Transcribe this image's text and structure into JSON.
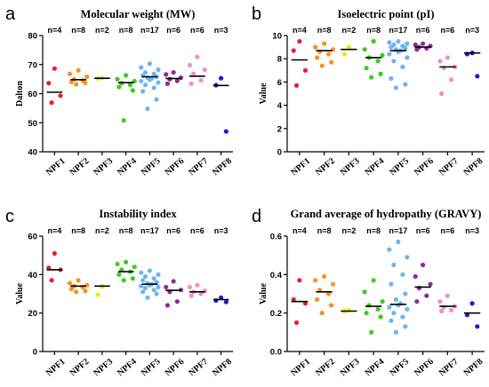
{
  "chart_data": [
    {
      "panel": "a",
      "type": "scatter",
      "title": "Molecular weight (MW)",
      "ylabel": "Dalton",
      "ylim": [
        40,
        80
      ],
      "yticks": [
        40,
        50,
        60,
        70,
        80
      ],
      "categories": [
        "NPF1",
        "NPF2",
        "NPF3",
        "NPF4",
        "NPF5",
        "NPF6",
        "NPF7",
        "NPF8"
      ],
      "n_labels": [
        "n=4",
        "n=8",
        "n=2",
        "n=8",
        "n=17",
        "n=6",
        "n=6",
        "n=3"
      ],
      "colors": [
        "#e8202a",
        "#f7931e",
        "#f2e600",
        "#3fca1f",
        "#6fb4f0",
        "#8e2a9c",
        "#f090c0",
        "#1c1ccf"
      ],
      "medians": [
        60.5,
        64.8,
        65.3,
        63.8,
        65.8,
        65.2,
        66,
        62.8
      ],
      "points": [
        [
          68.6,
          63.6,
          59.3,
          56.9
        ],
        [
          68.0,
          66.8,
          65.8,
          64.9,
          64.5,
          64.0,
          63.7,
          63.2
        ],
        [
          65.4,
          65.2
        ],
        [
          66.3,
          65.0,
          64.3,
          63.6,
          63.0,
          62.3,
          61.1,
          50.8
        ],
        [
          70.3,
          69.0,
          68.2,
          67.3,
          66.8,
          66.2,
          65.8,
          65.5,
          65.2,
          64.8,
          64.3,
          63.8,
          63.0,
          62.0,
          60.8,
          58.0,
          54.8
        ],
        [
          67.3,
          66.6,
          65.5,
          65.0,
          64.4,
          63.4
        ],
        [
          72.6,
          69.8,
          68.2,
          66.8,
          64.6,
          63.4
        ],
        [
          65.3,
          62.9,
          47.0
        ]
      ]
    },
    {
      "panel": "b",
      "type": "scatter",
      "title": "Isoelectric point (pI)",
      "ylabel": "Value",
      "ylim": [
        0,
        10
      ],
      "yticks": [
        0,
        2,
        4,
        6,
        8,
        10
      ],
      "categories": [
        "NPF1",
        "NPF2",
        "NPF3",
        "NPF4",
        "NPF5",
        "NPF6",
        "NPF7",
        "NPF8"
      ],
      "n_labels": [
        "n=4",
        "n=8",
        "n=2",
        "n=8",
        "n=17",
        "n=6",
        "n=6",
        "n=3"
      ],
      "colors": [
        "#e8202a",
        "#f7931e",
        "#f2e600",
        "#3fca1f",
        "#6fb4f0",
        "#8e2a9c",
        "#f090c0",
        "#1c1ccf"
      ],
      "medians": [
        7.9,
        8.7,
        8.8,
        8.1,
        8.7,
        9.0,
        7.3,
        8.5
      ],
      "points": [
        [
          9.5,
          8.7,
          7.0,
          5.7
        ],
        [
          9.3,
          9.0,
          8.8,
          8.6,
          8.4,
          8.1,
          7.7,
          7.4
        ],
        [
          9.0,
          8.4
        ],
        [
          9.5,
          8.8,
          8.3,
          8.1,
          7.8,
          7.2,
          6.7,
          6.4
        ],
        [
          9.5,
          9.4,
          9.3,
          9.2,
          9.1,
          9.0,
          8.9,
          8.8,
          8.7,
          8.6,
          8.4,
          8.1,
          7.8,
          7.3,
          6.3,
          5.8,
          5.5
        ],
        [
          9.3,
          9.2,
          9.1,
          9.0,
          8.9,
          8.8
        ],
        [
          8.1,
          7.8,
          7.3,
          7.2,
          6.2,
          5.0
        ],
        [
          8.5,
          8.4,
          6.5
        ]
      ]
    },
    {
      "panel": "c",
      "type": "scatter",
      "title": "Instability index",
      "ylabel": "Value",
      "ylim": [
        0,
        60
      ],
      "yticks": [
        0,
        20,
        40,
        60
      ],
      "categories": [
        "NPF1",
        "NPF2",
        "NPF3",
        "NPF4",
        "NPF5",
        "NPF6",
        "NPF7",
        "NPF8"
      ],
      "n_labels": [
        "n=4",
        "n=8",
        "n=2",
        "n=8",
        "n=17",
        "n=6",
        "n=6",
        "n=3"
      ],
      "colors": [
        "#e8202a",
        "#f7931e",
        "#f2e600",
        "#3fca1f",
        "#6fb4f0",
        "#8e2a9c",
        "#f090c0",
        "#1c1ccf"
      ],
      "medians": [
        42.5,
        34,
        34,
        41.5,
        35,
        31.8,
        31,
        27
      ],
      "points": [
        [
          51.0,
          43.5,
          42.5,
          37.0
        ],
        [
          37.0,
          35.5,
          34.5,
          34.0,
          33.5,
          32.5,
          31.5,
          31.0
        ],
        [
          33.8,
          29.5
        ],
        [
          46.5,
          45.5,
          44.0,
          42.5,
          41.5,
          40.0,
          38.0,
          37.0
        ],
        [
          42.0,
          41.0,
          40.0,
          39.0,
          38.0,
          37.0,
          36.0,
          35.5,
          35.0,
          34.5,
          34.0,
          33.5,
          33.0,
          32.0,
          31.0,
          30.0,
          28.0
        ],
        [
          36.5,
          33.5,
          32.0,
          31.0,
          26.0,
          24.0
        ],
        [
          34.5,
          33.5,
          31.5,
          31.0,
          30.0,
          29.0
        ],
        [
          28.0,
          26.5,
          25.8
        ]
      ]
    },
    {
      "panel": "d",
      "type": "scatter",
      "title": "Grand average of hydropathy (GRAVY)",
      "ylabel": "Value",
      "ylim": [
        0,
        0.6
      ],
      "yticks": [
        0.0,
        0.2,
        0.4,
        0.6
      ],
      "categories": [
        "NPF1",
        "NPF2",
        "NPF3",
        "NPF4",
        "NPF5",
        "NPF6",
        "NPF7",
        "NPF8"
      ],
      "n_labels": [
        "n=4",
        "n=8",
        "n=2",
        "n=8",
        "n=17",
        "n=6",
        "n=6",
        "n=3"
      ],
      "colors": [
        "#e8202a",
        "#f7931e",
        "#f2e600",
        "#3fca1f",
        "#6fb4f0",
        "#8e2a9c",
        "#f090c0",
        "#1c1ccf"
      ],
      "medians": [
        0.26,
        0.31,
        0.21,
        0.235,
        0.245,
        0.335,
        0.235,
        0.2
      ],
      "points": [
        [
          0.37,
          0.27,
          0.25,
          0.15
        ],
        [
          0.39,
          0.37,
          0.35,
          0.32,
          0.3,
          0.27,
          0.24,
          0.2
        ],
        [
          0.215,
          0.21
        ],
        [
          0.37,
          0.31,
          0.26,
          0.24,
          0.22,
          0.2,
          0.18,
          0.1
        ],
        [
          0.57,
          0.53,
          0.49,
          0.45,
          0.4,
          0.35,
          0.3,
          0.27,
          0.25,
          0.24,
          0.23,
          0.22,
          0.2,
          0.18,
          0.16,
          0.13,
          0.1
        ],
        [
          0.45,
          0.39,
          0.35,
          0.33,
          0.29,
          0.26
        ],
        [
          0.29,
          0.26,
          0.235,
          0.23,
          0.215,
          0.21
        ],
        [
          0.25,
          0.19,
          0.13
        ]
      ]
    }
  ]
}
